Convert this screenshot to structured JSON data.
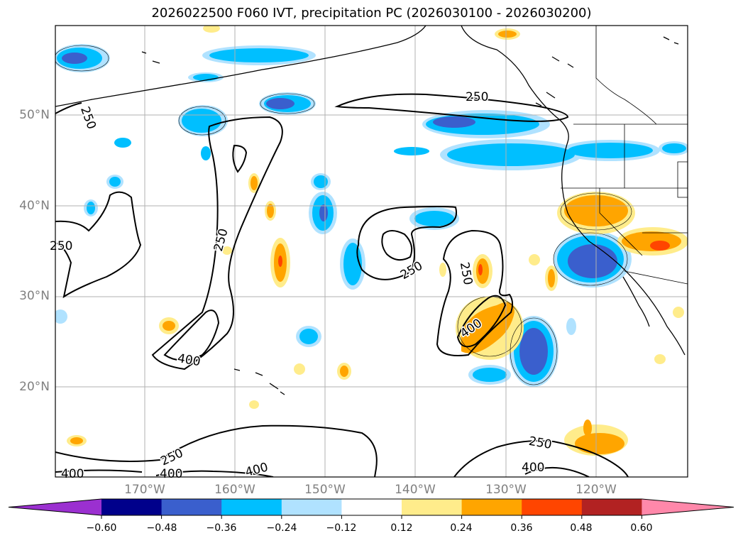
{
  "title": "2026022500 F060 IVT, precipitation PC (2026030100 - 2026030200)",
  "lat_labels": [
    "50°N",
    "40°N",
    "30°N",
    "20°N"
  ],
  "lon_labels": [
    "170°W",
    "160°W",
    "150°W",
    "140°W",
    "130°W",
    "120°W"
  ],
  "contour_labels": [
    "250",
    "250",
    "250",
    "250",
    "250",
    "250",
    "250",
    "400",
    "400",
    "400",
    "400",
    "400",
    "400",
    "250",
    "250"
  ],
  "colorbar": {
    "ticks": [
      "−0.60",
      "−0.48",
      "−0.36",
      "−0.24",
      "−0.12",
      "0.12",
      "0.24",
      "0.36",
      "0.48",
      "0.60"
    ],
    "colors": [
      "#9b30d0",
      "#00008b",
      "#3a5fcd",
      "#00bfff",
      "#b0e2ff",
      "#ffffff",
      "#ffec8b",
      "#ffa500",
      "#ff4500",
      "#b22222",
      "#ff88aa"
    ]
  }
}
